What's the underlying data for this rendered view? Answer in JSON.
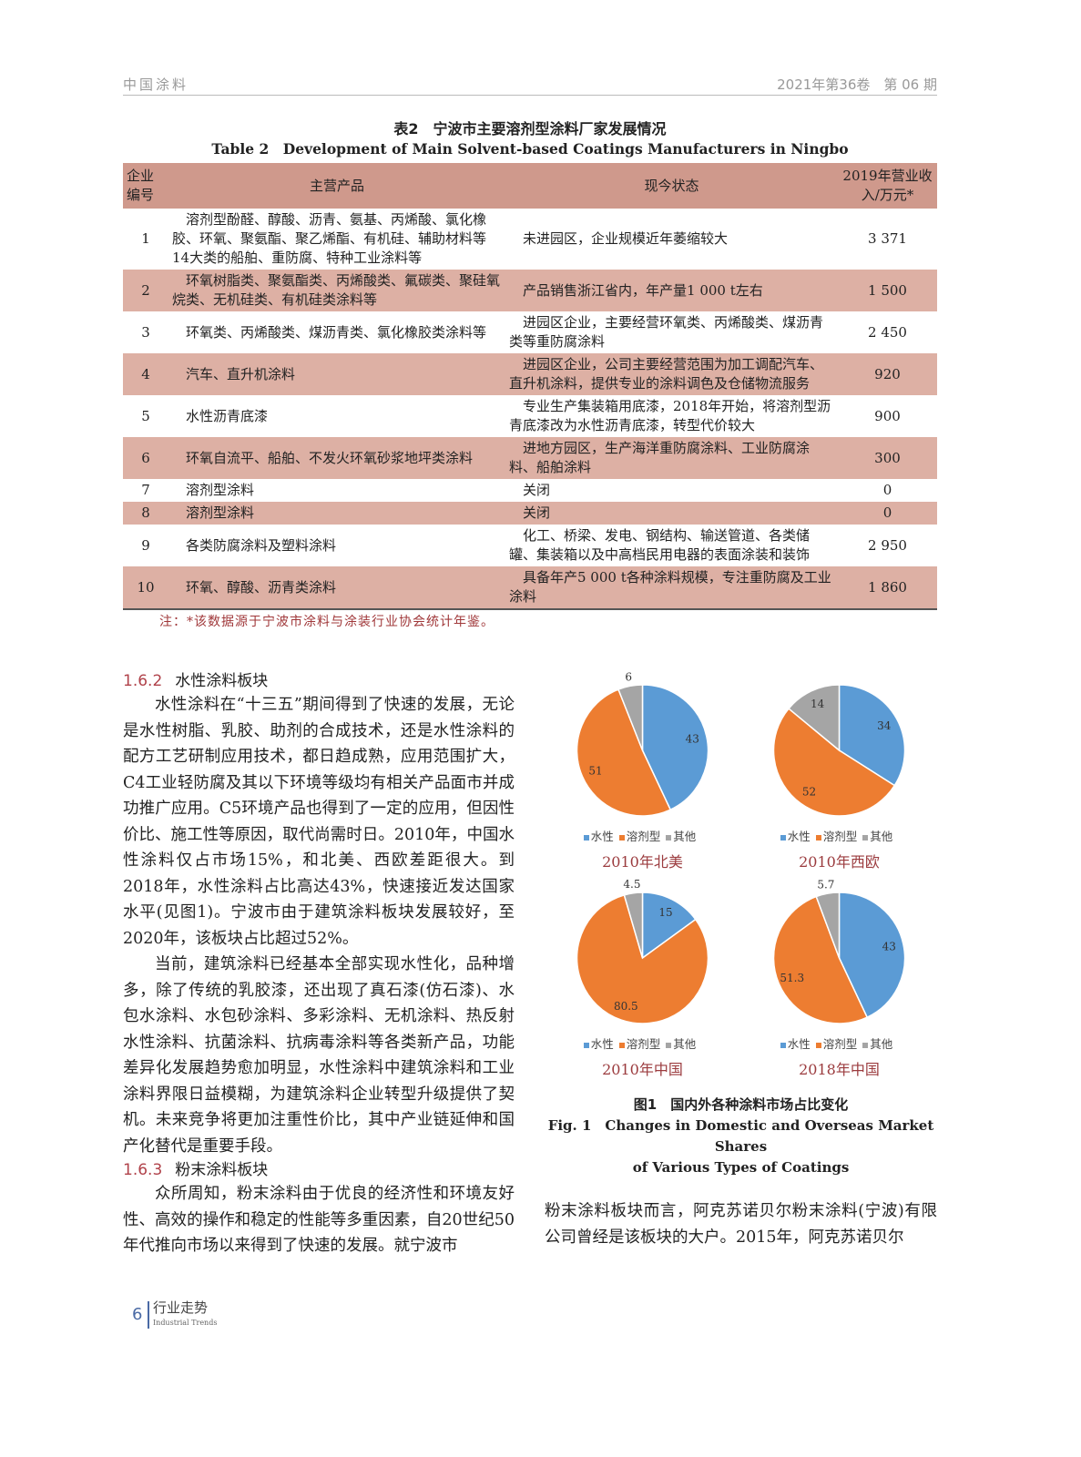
{
  "header": {
    "journal": "中国涂料",
    "issue": "2021年第36卷　第 06 期"
  },
  "table": {
    "caption_cn": "表2　宁波市主要溶剂型涂料厂家发展情况",
    "caption_en": "Table 2　Development of Main Solvent-based Coatings Manufacturers in Ningbo",
    "headers": [
      "企业编号",
      "主营产品",
      "现今状态",
      "2019年营业收入/万元*"
    ],
    "rows": [
      {
        "id": "1",
        "product": "溶剂型酚醛、醇酸、沥青、氨基、丙烯酸、氯化橡胶、环氧、聚氨酯、聚乙烯酯、有机硅、辅助材料等14大类的船舶、重防腐、特种工业涂料等",
        "status": "未进园区，企业规模近年萎缩较大",
        "revenue": "3 371"
      },
      {
        "id": "2",
        "product": "环氧树脂类、聚氨酯类、丙烯酸类、氟碳类、聚硅氧烷类、无机硅类、有机硅类涂料等",
        "status": "产品销售浙江省内，年产量1 000 t左右",
        "revenue": "1 500"
      },
      {
        "id": "3",
        "product": "环氧类、丙烯酸类、煤沥青类、氯化橡胶类涂料等",
        "status": "进园区企业，主要经营环氧类、丙烯酸类、煤沥青类等重防腐涂料",
        "revenue": "2 450"
      },
      {
        "id": "4",
        "product": "汽车、直升机涂料",
        "status": "进园区企业，公司主要经营范围为加工调配汽车、直升机涂料，提供专业的涂料调色及仓储物流服务",
        "revenue": "920"
      },
      {
        "id": "5",
        "product": "水性沥青底漆",
        "status": "专业生产集装箱用底漆，2018年开始，将溶剂型沥青底漆改为水性沥青底漆，转型代价较大",
        "revenue": "900"
      },
      {
        "id": "6",
        "product": "环氧自流平、船舶、不发火环氧砂浆地坪类涂料",
        "status": "进地方园区，生产海洋重防腐涂料、工业防腐涂料、船舶涂料",
        "revenue": "300"
      },
      {
        "id": "7",
        "product": "溶剂型涂料",
        "status": "关闭",
        "revenue": "0"
      },
      {
        "id": "8",
        "product": "溶剂型涂料",
        "status": "关闭",
        "revenue": "0"
      },
      {
        "id": "9",
        "product": "各类防腐涂料及塑料涂料",
        "status": "化工、桥梁、发电、钢结构、输送管道、各类储罐、集装箱以及中高档民用电器的表面涂装和装饰",
        "revenue": "2 950"
      },
      {
        "id": "10",
        "product": "环氧、醇酸、沥青类涂料",
        "status": "具备年产5 000 t各种涂料规模，专注重防腐及工业涂料",
        "revenue": "1 860"
      }
    ],
    "note": "注：*该数据源于宁波市涂料与涂装行业协会统计年鉴。"
  },
  "sections": {
    "s162": {
      "num": "1.6.2",
      "title": "水性涂料板块"
    },
    "p1": "水性涂料在“十三五”期间得到了快速的发展，无论是水性树脂、乳胶、助剂的合成技术，还是水性涂料的配方工艺研制应用技术，都日趋成熟，应用范围扩大，C4工业轻防腐及其以下环境等级均有相关产品面市并成功推广应用。C5环境产品也得到了一定的应用，但因性价比、施工性等原因，取代尚需时日。2010年，中国水性涂料仅占市场15%，和北美、西欧差距很大。到2018年，水性涂料占比高达43%，快速接近发达国家水平(见图1)。宁波市由于建筑涂料板块发展较好，至2020年，该板块占比超过52%。",
    "p2": "当前，建筑涂料已经基本全部实现水性化，品种增多，除了传统的乳胶漆，还出现了真石漆(仿石漆)、水包水涂料、水包砂涂料、多彩涂料、无机涂料、热反射水性涂料、抗菌涂料、抗病毒涂料等各类新产品，功能差异化发展趋势愈加明显，水性涂料中建筑涂料和工业涂料界限日益模糊，为建筑涂料企业转型升级提供了契机。未来竞争将更加注重性价比，其中产业链延伸和国产化替代是重要手段。",
    "s163": {
      "num": "1.6.3",
      "title": "粉末涂料板块"
    },
    "p3": "众所周知，粉末涂料由于优良的经济性和环境友好性、高效的操作和稳定的性能等多重因素，自20世纪50年代推向市场以来得到了快速的发展。就宁波市",
    "p4": "粉末涂料板块而言，阿克苏诺贝尔粉末涂料(宁波)有限公司曾经是该板块的大户。2015年，阿克苏诺贝尔"
  },
  "figure": {
    "caption_cn": "图1　国内外各种涂料市场占比变化",
    "caption_en_1": "Fig. 1　Changes in Domestic and Overseas Market Shares",
    "caption_en_2": "of Various Types of Coatings"
  },
  "chart_data": [
    {
      "type": "pie",
      "title": "2010年北美",
      "categories": [
        "水性",
        "溶剂型",
        "其他"
      ],
      "values": [
        43,
        51,
        6
      ]
    },
    {
      "type": "pie",
      "title": "2010年西欧",
      "categories": [
        "水性",
        "溶剂型",
        "其他"
      ],
      "values": [
        34,
        52,
        14
      ]
    },
    {
      "type": "pie",
      "title": "2010年中国",
      "categories": [
        "水性",
        "溶剂型",
        "其他"
      ],
      "values": [
        15,
        80.5,
        4.5
      ]
    },
    {
      "type": "pie",
      "title": "2018年中国",
      "categories": [
        "水性",
        "溶剂型",
        "其他"
      ],
      "values": [
        43,
        51.3,
        5.7
      ]
    }
  ],
  "colors": {
    "水性": "#5b9bd5",
    "溶剂型": "#ed7d31",
    "其他": "#a5a5a5"
  },
  "footer": {
    "page": "6",
    "section_cn": "行业走势",
    "section_en": "Industrial Trends"
  }
}
